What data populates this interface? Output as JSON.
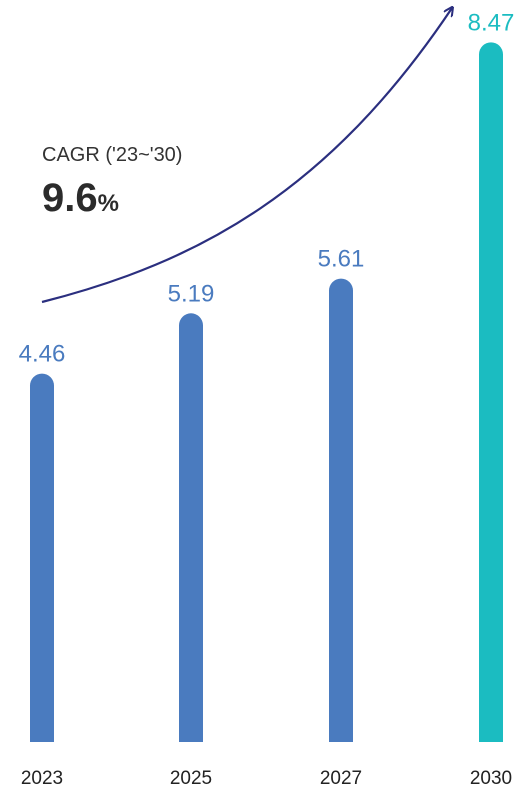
{
  "chart_data": {
    "type": "bar",
    "categories": [
      "2023",
      "2025",
      "2027",
      "2030"
    ],
    "values": [
      4.46,
      5.19,
      5.61,
      8.47
    ],
    "value_labels": [
      "4.46",
      "5.19",
      "5.61",
      "8.47"
    ],
    "title": "",
    "xlabel": "",
    "ylabel": "",
    "grid": false,
    "legend": "none",
    "annotation": {
      "label": "CAGR ('23~'30)",
      "value": "9.6",
      "unit": "%"
    },
    "colors": {
      "bar": "#4a7bbf",
      "highlight_bar": "#1bbcc1",
      "arrow": "#2b2f7f",
      "axis_text": "#222222"
    },
    "highlight_index": 3
  }
}
